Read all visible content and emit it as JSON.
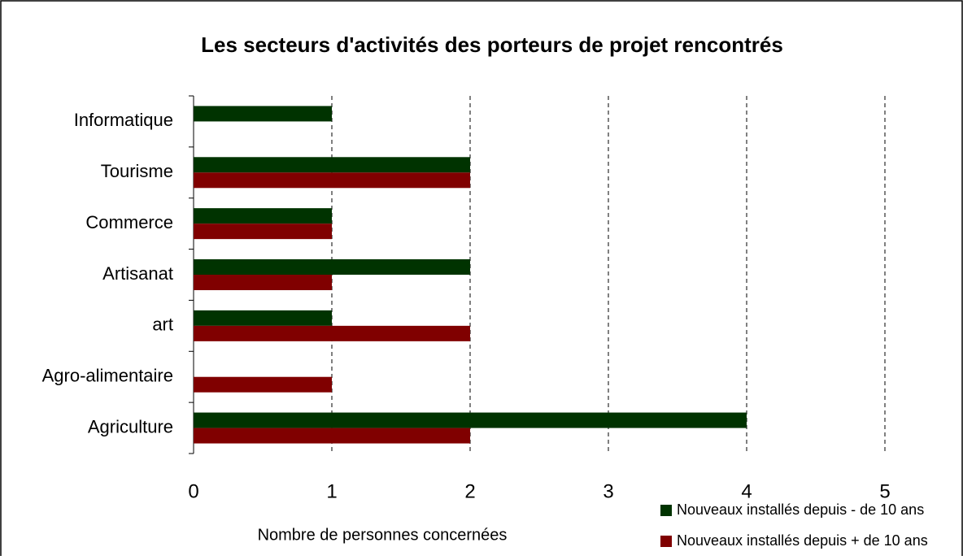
{
  "chart_data": {
    "type": "hbar",
    "title": "Les secteurs d'activités des porteurs de projet rencontrés",
    "xlabel": "Nombre de personnes concernées",
    "categories": [
      "Informatique",
      "Tourisme",
      "Commerce",
      "Artisanat",
      "art",
      "Agro-alimentaire",
      "Agriculture"
    ],
    "series": [
      {
        "name": "Nouveaux installés depuis - de 10 ans",
        "color": "#003300",
        "values": [
          1,
          2,
          1,
          2,
          1,
          0,
          4
        ]
      },
      {
        "name": "Nouveaux installés depuis + de 10 ans",
        "color": "#800000",
        "values": [
          0,
          2,
          1,
          1,
          2,
          1,
          2
        ]
      }
    ],
    "xlim": [
      0,
      5
    ],
    "xticks": [
      0,
      1,
      2,
      3,
      4,
      5
    ],
    "grid": true,
    "legend": "bottom-right"
  }
}
